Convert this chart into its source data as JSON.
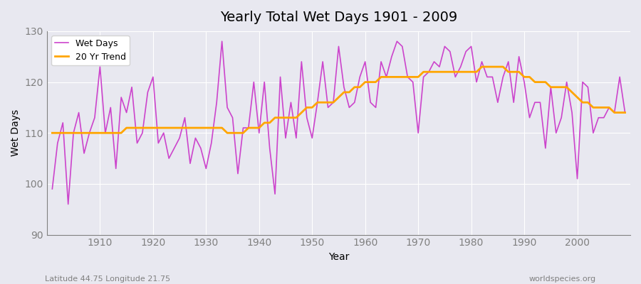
{
  "title": "Yearly Total Wet Days 1901 - 2009",
  "xlabel": "Year",
  "ylabel": "Wet Days",
  "subtitle_left": "Latitude 44.75 Longitude 21.75",
  "subtitle_right": "worldspecies.org",
  "ylim": [
    90,
    130
  ],
  "yticks": [
    90,
    100,
    110,
    120,
    130
  ],
  "xticks": [
    1910,
    1920,
    1930,
    1940,
    1950,
    1960,
    1970,
    1980,
    1990,
    2000
  ],
  "wet_days_color": "#CC44CC",
  "trend_color": "#FFA500",
  "bg_color": "#E8E8F0",
  "legend_labels": [
    "Wet Days",
    "20 Yr Trend"
  ],
  "years": [
    1901,
    1902,
    1903,
    1904,
    1905,
    1906,
    1907,
    1908,
    1909,
    1910,
    1911,
    1912,
    1913,
    1914,
    1915,
    1916,
    1917,
    1918,
    1919,
    1920,
    1921,
    1922,
    1923,
    1924,
    1925,
    1926,
    1927,
    1928,
    1929,
    1930,
    1931,
    1932,
    1933,
    1934,
    1935,
    1936,
    1937,
    1938,
    1939,
    1940,
    1941,
    1942,
    1943,
    1944,
    1945,
    1946,
    1947,
    1948,
    1949,
    1950,
    1951,
    1952,
    1953,
    1954,
    1955,
    1956,
    1957,
    1958,
    1959,
    1960,
    1961,
    1962,
    1963,
    1964,
    1965,
    1966,
    1967,
    1968,
    1969,
    1970,
    1971,
    1972,
    1973,
    1974,
    1975,
    1976,
    1977,
    1978,
    1979,
    1980,
    1981,
    1982,
    1983,
    1984,
    1985,
    1986,
    1987,
    1988,
    1989,
    1990,
    1991,
    1992,
    1993,
    1994,
    1995,
    1996,
    1997,
    1998,
    1999,
    2000,
    2001,
    2002,
    2003,
    2004,
    2005,
    2006,
    2007,
    2008,
    2009
  ],
  "wet_days": [
    99,
    108,
    112,
    96,
    110,
    114,
    106,
    110,
    113,
    123,
    110,
    115,
    103,
    117,
    114,
    119,
    108,
    110,
    118,
    121,
    108,
    110,
    105,
    107,
    109,
    113,
    104,
    109,
    107,
    103,
    108,
    116,
    128,
    115,
    113,
    102,
    111,
    111,
    120,
    110,
    120,
    107,
    98,
    121,
    109,
    116,
    109,
    124,
    113,
    109,
    116,
    124,
    115,
    116,
    127,
    119,
    115,
    116,
    121,
    124,
    116,
    115,
    124,
    121,
    125,
    128,
    127,
    121,
    120,
    110,
    121,
    122,
    124,
    123,
    127,
    126,
    121,
    123,
    126,
    127,
    120,
    124,
    121,
    121,
    116,
    121,
    124,
    116,
    125,
    120,
    113,
    116,
    116,
    107,
    119,
    110,
    113,
    120,
    114,
    101,
    120,
    119,
    110,
    113,
    113,
    115,
    114,
    121,
    114
  ],
  "trend_years": [
    1901,
    1902,
    1903,
    1904,
    1905,
    1906,
    1907,
    1908,
    1909,
    1910,
    1911,
    1912,
    1913,
    1914,
    1915,
    1916,
    1917,
    1918,
    1919,
    1920,
    1921,
    1922,
    1923,
    1924,
    1925,
    1926,
    1927,
    1928,
    1929,
    1930,
    1931,
    1932,
    1933,
    1934,
    1935,
    1936,
    1937,
    1938,
    1939,
    1940,
    1941,
    1942,
    1943,
    1944,
    1945,
    1946,
    1947,
    1948,
    1949,
    1950,
    1951,
    1952,
    1953,
    1954,
    1955,
    1956,
    1957,
    1958,
    1959,
    1960,
    1961,
    1962,
    1963,
    1964,
    1965,
    1966,
    1967,
    1968,
    1969,
    1970,
    1971,
    1972,
    1973,
    1974,
    1975,
    1976,
    1977,
    1978,
    1979,
    1980,
    1981,
    1982,
    1983,
    1984,
    1985,
    1986,
    1987,
    1988,
    1989,
    1990,
    1991,
    1992,
    1993,
    1994,
    1995,
    1996,
    1997,
    1998,
    1999,
    2000,
    2001,
    2002,
    2003,
    2004,
    2005,
    2006,
    2007,
    2008,
    2009
  ],
  "trend_values": [
    110,
    110,
    110,
    110,
    110,
    110,
    110,
    110,
    110,
    110,
    110,
    110,
    110,
    110,
    111,
    111,
    111,
    111,
    111,
    111,
    111,
    111,
    111,
    111,
    111,
    111,
    111,
    111,
    111,
    111,
    111,
    111,
    111,
    110,
    110,
    110,
    110,
    111,
    111,
    111,
    112,
    112,
    113,
    113,
    113,
    113,
    113,
    114,
    115,
    115,
    116,
    116,
    116,
    116,
    117,
    118,
    118,
    119,
    119,
    120,
    120,
    120,
    121,
    121,
    121,
    121,
    121,
    121,
    121,
    121,
    122,
    122,
    122,
    122,
    122,
    122,
    122,
    122,
    122,
    122,
    122,
    123,
    123,
    123,
    123,
    123,
    122,
    122,
    122,
    121,
    121,
    120,
    120,
    120,
    119,
    119,
    119,
    119,
    118,
    117,
    116,
    116,
    115,
    115,
    115,
    115,
    114,
    114,
    114
  ]
}
